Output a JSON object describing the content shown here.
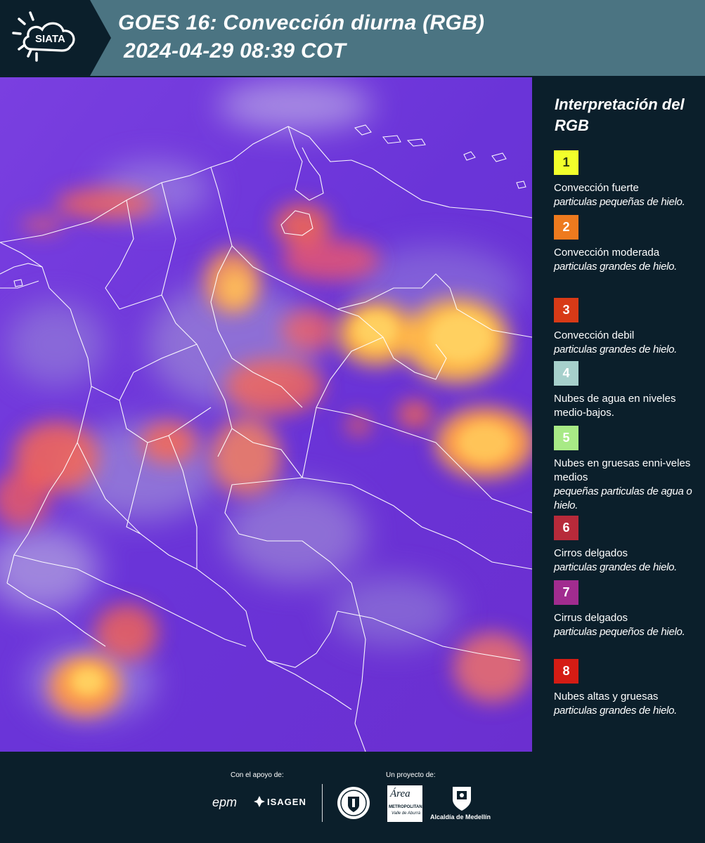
{
  "header": {
    "logo_text": "SIATA",
    "title_line1": "GOES 16: Convección diurna (RGB)",
    "title_line2": "2024-04-29 08:39 COT",
    "background_color": "#4b7482",
    "plate_color": "#0b1f2b"
  },
  "legend": {
    "title": "Interpretación del RGB",
    "items": [
      {
        "number": "1",
        "color": "#f2ff2b",
        "number_color": "#2b3a10",
        "title": "Convección fuerte",
        "subtitle": "particulas pequeñas de hielo."
      },
      {
        "number": "2",
        "color": "#ee7a1e",
        "number_color": "#ffffff",
        "title": "Convección moderada",
        "subtitle": "particulas grandes de hielo."
      },
      {
        "number": "3",
        "color": "#d83a17",
        "number_color": "#ffffff",
        "title": "Convección debil",
        "subtitle": "particulas grandes de hielo."
      },
      {
        "number": "4",
        "color": "#a6d0cc",
        "number_color": "#ffffff",
        "title": "Nubes de agua en niveles medio-bajos.",
        "subtitle": ""
      },
      {
        "number": "5",
        "color": "#a8ea86",
        "number_color": "#ffffff",
        "title": "Nubes en gruesas enni-veles medios",
        "subtitle": "pequeñas particulas de agua o hielo."
      },
      {
        "number": "6",
        "color": "#b72a3a",
        "number_color": "#ffffff",
        "title": "Cirros delgados",
        "subtitle": "particulas grandes de hielo."
      },
      {
        "number": "7",
        "color": "#a12c8f",
        "number_color": "#ffffff",
        "title": "Cirrus delgados",
        "subtitle": "particulas pequeños de hielo."
      },
      {
        "number": "8",
        "color": "#d51c14",
        "number_color": "#ffffff",
        "title": "Nubes altas y gruesas",
        "subtitle": "particulas grandes de hielo."
      }
    ]
  },
  "footer": {
    "support_label": "Con el apoyo de:",
    "project_label": "Un proyecto de:",
    "sponsors": [
      "epm",
      "ISAGEN"
    ],
    "area_logo_lines": [
      "Área",
      "METROPOLITANA",
      "Valle de Aburrá"
    ],
    "alcaldia_label": "Alcaldía de Medellín"
  },
  "map": {
    "background_color": "#6a33d6",
    "border_color": "#ffffff"
  }
}
